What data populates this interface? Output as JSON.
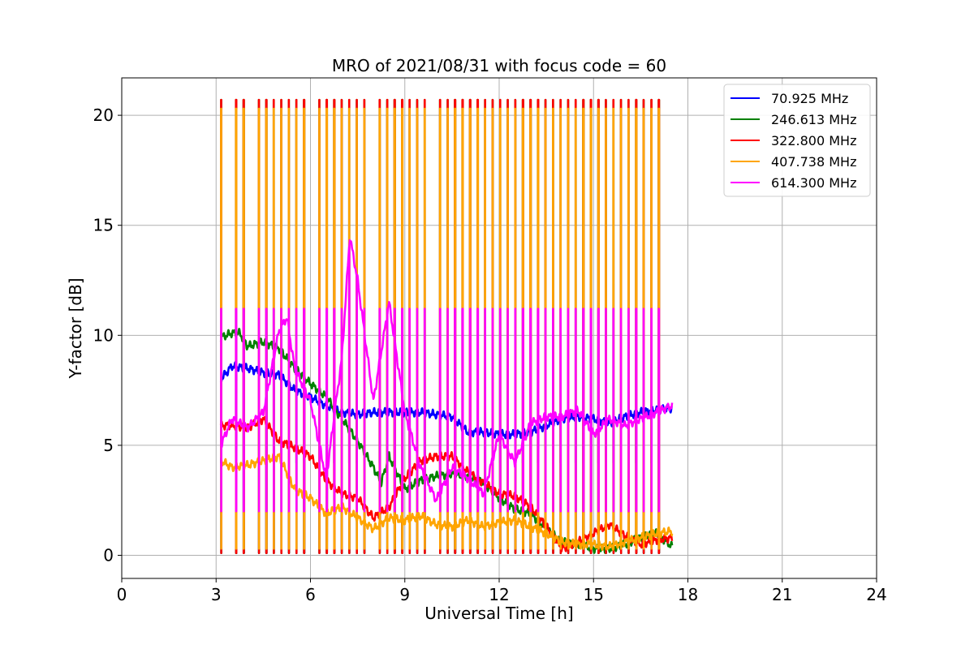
{
  "chart_data": {
    "type": "line",
    "title": "MRO of 2021/08/31 with focus code = 60",
    "xlabel": "Universal Time [h]",
    "ylabel": "Y-factor [dB]",
    "xlim": [
      0,
      24
    ],
    "ylim": [
      -1.05,
      21.7
    ],
    "xticks": [
      0,
      3,
      6,
      9,
      12,
      15,
      18,
      21,
      24
    ],
    "yticks": [
      0,
      5,
      10,
      15,
      20
    ],
    "grid": true,
    "legend_position": "top-right",
    "calibration": {
      "start": 3.15,
      "end": 17.5,
      "period": 0.24,
      "series_levels": [
        4.2,
        20.7,
        20.7,
        20.3,
        11.2
      ]
    },
    "series": [
      {
        "name": "70.925 MHz",
        "color": "#0000ff",
        "baseline_min": 0.1,
        "x": [
          3.15,
          3.5,
          4.0,
          4.5,
          5.0,
          5.5,
          6.0,
          6.5,
          7.0,
          7.5,
          8.0,
          8.5,
          9.0,
          9.5,
          10.0,
          10.5,
          11.0,
          11.5,
          12.0,
          12.5,
          13.0,
          13.5,
          14.0,
          14.5,
          15.0,
          15.5,
          16.0,
          16.5,
          17.0,
          17.5
        ],
        "y": [
          8.0,
          8.6,
          8.5,
          8.3,
          8.2,
          7.5,
          7.2,
          6.8,
          6.5,
          6.4,
          6.5,
          6.5,
          6.5,
          6.5,
          6.4,
          6.3,
          5.6,
          5.6,
          5.5,
          5.5,
          5.6,
          5.9,
          6.2,
          6.3,
          6.2,
          6.0,
          6.3,
          6.5,
          6.6,
          6.7
        ]
      },
      {
        "name": "246.613 MHz",
        "color": "#008000",
        "baseline_min": 0.1,
        "x": [
          3.15,
          3.5,
          3.75,
          4.0,
          4.5,
          5.0,
          5.5,
          6.0,
          6.5,
          7.0,
          7.5,
          8.0,
          8.25,
          8.5,
          9.0,
          9.5,
          10.0,
          10.5,
          11.0,
          11.5,
          12.0,
          12.5,
          13.0,
          13.5,
          14.0,
          14.5,
          15.0,
          15.5,
          16.0,
          16.5,
          17.0,
          17.5
        ],
        "y": [
          9.9,
          10.1,
          10.1,
          9.5,
          9.7,
          9.4,
          8.5,
          7.8,
          7.2,
          6.2,
          5.2,
          4.0,
          3.3,
          4.5,
          3.0,
          3.4,
          3.6,
          3.7,
          3.6,
          3.3,
          2.6,
          2.1,
          1.9,
          1.2,
          0.6,
          0.5,
          0.3,
          0.3,
          0.5,
          0.8,
          1.0,
          0.4
        ]
      },
      {
        "name": "322.800 MHz",
        "color": "#ff0000",
        "baseline_min": 0.1,
        "x": [
          3.15,
          3.5,
          4.0,
          4.5,
          5.0,
          5.5,
          6.0,
          6.5,
          7.0,
          7.5,
          8.0,
          8.5,
          9.0,
          9.5,
          10.0,
          10.5,
          11.0,
          11.5,
          12.0,
          12.5,
          13.0,
          13.5,
          14.0,
          14.5,
          15.0,
          15.5,
          16.0,
          16.5,
          17.0,
          17.5
        ],
        "y": [
          5.9,
          5.9,
          5.8,
          6.2,
          5.2,
          4.9,
          4.5,
          3.4,
          2.8,
          2.6,
          1.7,
          2.2,
          3.5,
          4.3,
          4.5,
          4.5,
          3.8,
          3.3,
          2.8,
          2.7,
          2.2,
          1.3,
          0.3,
          0.6,
          1.0,
          1.4,
          0.9,
          0.5,
          0.7,
          0.8
        ]
      },
      {
        "name": "407.738 MHz",
        "color": "#ffa500",
        "baseline_min": 0.3,
        "x": [
          3.15,
          3.5,
          4.0,
          4.5,
          5.0,
          5.5,
          6.0,
          6.5,
          7.0,
          7.5,
          8.0,
          8.5,
          9.0,
          9.5,
          10.0,
          10.5,
          11.0,
          11.5,
          12.0,
          12.5,
          13.0,
          13.5,
          14.0,
          14.5,
          15.0,
          15.5,
          16.0,
          16.5,
          17.0,
          17.5
        ],
        "y": [
          4.3,
          4.0,
          4.1,
          4.3,
          4.5,
          3.0,
          2.6,
          1.9,
          2.2,
          1.7,
          1.2,
          1.7,
          1.6,
          1.8,
          1.4,
          1.3,
          1.6,
          1.3,
          1.5,
          1.6,
          1.3,
          1.0,
          0.6,
          0.5,
          0.5,
          0.4,
          0.6,
          0.8,
          1.0,
          1.1
        ]
      },
      {
        "name": "614.300 MHz",
        "color": "#ff00ff",
        "baseline_min": 2.0,
        "x": [
          3.15,
          3.5,
          4.0,
          4.5,
          5.0,
          5.25,
          5.5,
          6.0,
          6.5,
          7.0,
          7.25,
          7.5,
          8.0,
          8.5,
          9.0,
          9.5,
          10.0,
          10.5,
          11.0,
          11.5,
          12.0,
          12.5,
          13.0,
          13.5,
          14.0,
          14.5,
          15.0,
          15.5,
          16.0,
          16.5,
          17.0,
          17.5
        ],
        "y": [
          5.0,
          6.2,
          5.8,
          6.5,
          10.2,
          10.8,
          8.5,
          7.0,
          3.5,
          9.0,
          14.5,
          12.5,
          7.0,
          11.5,
          6.5,
          4.0,
          2.5,
          4.0,
          3.5,
          2.8,
          5.5,
          4.2,
          6.0,
          6.3,
          6.3,
          6.6,
          5.5,
          6.2,
          5.9,
          6.2,
          6.5,
          6.8
        ]
      }
    ]
  }
}
